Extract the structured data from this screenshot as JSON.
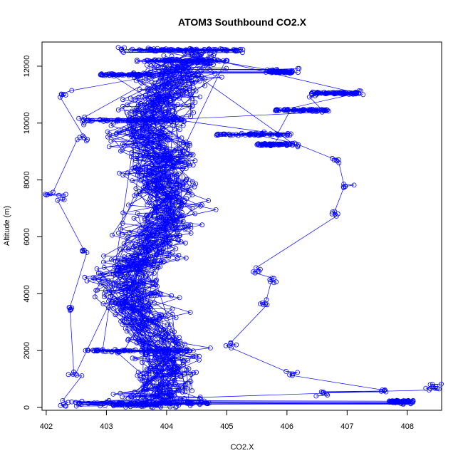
{
  "chart_data": {
    "type": "scatter",
    "title": "ATOM3 Southbound CO2.X",
    "xlabel": "CO2.X",
    "ylabel": "Altitude (m)",
    "xlim": [
      401.93,
      408.57
    ],
    "ylim": [
      -100,
      12850
    ],
    "x_ticks": [
      "402",
      "403",
      "404",
      "405",
      "406",
      "407",
      "408"
    ],
    "y_ticks": [
      "0",
      "2000",
      "4000",
      "6000",
      "8000",
      "10000",
      "12000"
    ],
    "marker": "open-circle",
    "connected": true,
    "color": "#0000ff",
    "grid": false,
    "legend": "none",
    "series": [
      {
        "description_points": [
          [
            402.3,
            150
          ],
          [
            402.5,
            1200
          ],
          [
            402.4,
            3500
          ],
          [
            402.6,
            5500
          ],
          [
            402.3,
            7400
          ],
          [
            402.0,
            7550
          ],
          [
            402.6,
            9500
          ],
          [
            402.3,
            11000
          ],
          [
            403.3,
            12600
          ],
          [
            404.5,
            12550
          ],
          [
            405.2,
            12550
          ],
          [
            403.5,
            11700
          ],
          [
            403.9,
            11800
          ],
          [
            405.7,
            11800
          ],
          [
            406.1,
            11800
          ],
          [
            402.6,
            10100
          ],
          [
            404.2,
            10100
          ],
          [
            406.4,
            11000
          ],
          [
            407.2,
            11050
          ],
          [
            406.6,
            10450
          ],
          [
            405.6,
            9600
          ],
          [
            406.1,
            9250
          ],
          [
            406.8,
            8700
          ],
          [
            407.0,
            7750
          ],
          [
            406.8,
            6800
          ],
          [
            405.5,
            4800
          ],
          [
            405.8,
            4500
          ],
          [
            405.6,
            3700
          ],
          [
            405.1,
            2200
          ],
          [
            406.1,
            1200
          ],
          [
            406.6,
            500
          ],
          [
            407.6,
            550
          ],
          [
            408.0,
            200
          ],
          [
            408.4,
            750
          ],
          [
            408.5,
            700
          ],
          [
            402.5,
            150
          ],
          [
            403.0,
            150
          ],
          [
            403.6,
            100
          ],
          [
            404.1,
            150
          ],
          [
            404.6,
            200
          ],
          [
            403.2,
            2000
          ],
          [
            403.8,
            4000
          ],
          [
            404.0,
            6000
          ],
          [
            404.3,
            8000
          ],
          [
            403.9,
            9600
          ]
        ]
      }
    ]
  }
}
